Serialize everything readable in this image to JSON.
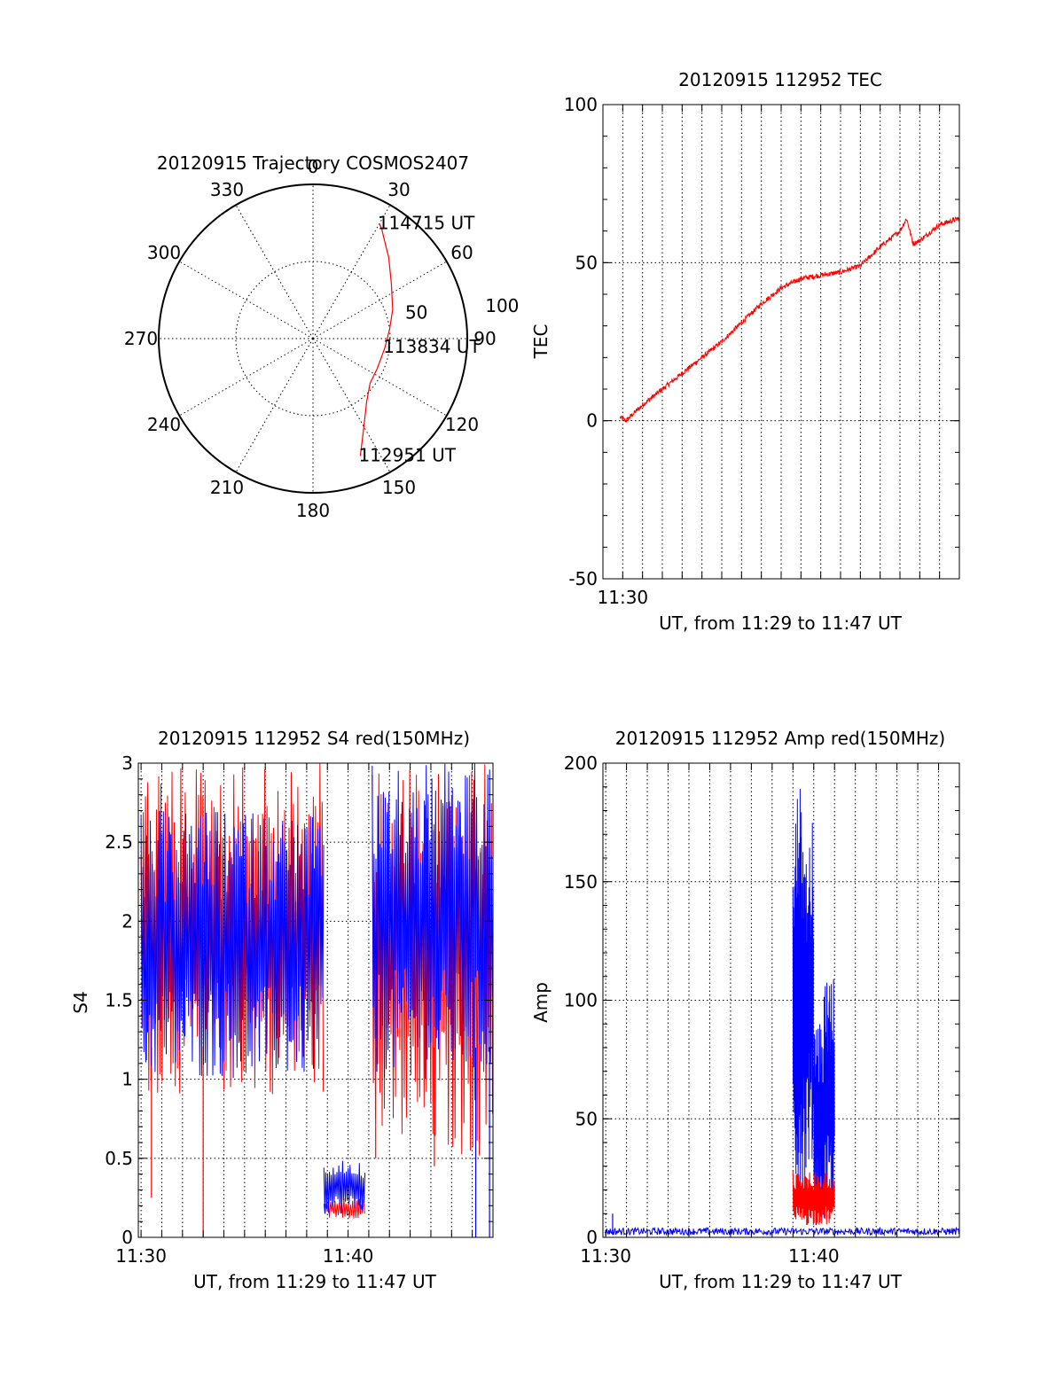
{
  "colors": {
    "red": "#ff0000",
    "blue": "#0000ff",
    "axis": "#000000",
    "background": "#ffffff"
  },
  "chart_data": [
    {
      "id": "polar",
      "type": "scatter",
      "title": "20120915 Trajectory COSMOS2407",
      "projection": "polar",
      "azimuth_labels": [
        "0",
        "30",
        "60",
        "90",
        "120",
        "150",
        "180",
        "210",
        "240",
        "270",
        "300",
        "330"
      ],
      "radius_labels": [
        "50",
        "100"
      ],
      "rlim": [
        0,
        100
      ],
      "grid": true,
      "series": [
        {
          "color": "#ff0000",
          "points_az_r": [
            [
              158,
              82
            ],
            [
              150,
              66
            ],
            [
              140,
              54
            ],
            [
              128,
              47
            ],
            [
              115,
              46
            ],
            [
              97,
              47
            ],
            [
              83,
              50
            ],
            [
              70,
              55
            ],
            [
              55,
              62
            ],
            [
              43,
              72
            ],
            [
              35,
              80
            ],
            [
              32,
              84
            ],
            [
              30,
              86
            ]
          ]
        }
      ],
      "annotations": [
        {
          "text": "114715 UT",
          "az": 30,
          "r": 86
        },
        {
          "text": "113834 UT",
          "az": 97,
          "r": 47
        },
        {
          "text": "112951 UT",
          "az": 158,
          "r": 82
        }
      ]
    },
    {
      "id": "tec",
      "type": "line",
      "title": "20120915 112952 TEC",
      "xlabel": "UT, from 11:29 to 11:47 UT",
      "ylabel": "TEC",
      "xlim": [
        "11:29",
        "11:47"
      ],
      "ylim": [
        -50,
        100
      ],
      "xticks": [
        "11:30"
      ],
      "yticks": [
        "-50",
        "0",
        "50",
        "100"
      ],
      "grid": true,
      "series": [
        {
          "color": "#ff0000",
          "x": [
            "11:29:52",
            "11:30:10",
            "11:31",
            "11:32",
            "11:33",
            "11:34",
            "11:35",
            "11:36",
            "11:37",
            "11:38",
            "11:39",
            "11:40",
            "11:41",
            "11:42",
            "11:43",
            "11:44",
            "11:44:20",
            "11:44:40",
            "11:45",
            "11:46",
            "11:47"
          ],
          "y": [
            1,
            0,
            5,
            10,
            15,
            20,
            25,
            31,
            37,
            42,
            45,
            46,
            47,
            49,
            55,
            60,
            64,
            56,
            57,
            62,
            64
          ]
        }
      ]
    },
    {
      "id": "s4",
      "type": "line",
      "title": "20120915 112952 S4 red(150MHz)",
      "xlabel": "UT, from 11:29 to 11:47 UT",
      "ylabel": "S4",
      "xlim": [
        "11:29:52",
        "11:47:00"
      ],
      "ylim": [
        0,
        3
      ],
      "xticks": [
        "11:30",
        "11:40"
      ],
      "yticks": [
        "0",
        "0.5",
        "1",
        "1.5",
        "2",
        "2.5",
        "3"
      ],
      "grid": true,
      "series": [
        {
          "color": "#ff0000",
          "segments": [
            {
              "from": "11:30:00",
              "to": "11:38:50",
              "low": 0.9,
              "high": 3.0
            },
            {
              "from": "11:38:50",
              "to": "11:40:50",
              "low": 0.12,
              "high": 0.25
            },
            {
              "from": "11:41:10",
              "to": "11:47:00",
              "low": 0.5,
              "high": 3.0
            }
          ],
          "dips": [
            [
              "11:30:30",
              0.25
            ],
            [
              "11:33:00",
              0.0
            ],
            [
              "11:41:20",
              0.5
            ],
            [
              "11:44:10",
              0.45
            ]
          ]
        },
        {
          "color": "#0000ff",
          "segments": [
            {
              "from": "11:30:00",
              "to": "11:38:50",
              "low": 1.0,
              "high": 2.7
            },
            {
              "from": "11:38:50",
              "to": "11:40:50",
              "low": 0.15,
              "high": 0.5
            },
            {
              "from": "11:41:10",
              "to": "11:47:00",
              "low": 1.0,
              "high": 3.0
            }
          ],
          "dips": [
            [
              "11:46:10",
              0.0
            ],
            [
              "11:46:50",
              0.0
            ]
          ]
        }
      ]
    },
    {
      "id": "amp",
      "type": "line",
      "title": "20120915 112952 Amp red(150MHz)",
      "xlabel": "UT, from 11:29 to 11:47 UT",
      "ylabel": "Amp",
      "xlim": [
        "11:29:52",
        "11:47:00"
      ],
      "ylim": [
        0,
        200
      ],
      "xticks": [
        "11:30",
        "11:40"
      ],
      "yticks": [
        "0",
        "50",
        "100",
        "150",
        "200"
      ],
      "grid": true,
      "series": [
        {
          "color": "#ff0000",
          "segments": [
            {
              "from": "11:39:00",
              "to": "11:41:00",
              "low": 5,
              "high": 28
            }
          ]
        },
        {
          "color": "#0000ff",
          "baseline": [
            1,
            4
          ],
          "segments": [
            {
              "from": "11:39:00",
              "to": "11:39:40",
              "low": 20,
              "high": 190
            },
            {
              "from": "11:39:40",
              "to": "11:40:00",
              "low": 30,
              "high": 175
            },
            {
              "from": "11:40:00",
              "to": "11:40:30",
              "low": 5,
              "high": 90
            },
            {
              "from": "11:40:30",
              "to": "11:41:00",
              "low": 10,
              "high": 110
            }
          ],
          "spikes": [
            [
              "11:30:20",
              10
            ]
          ]
        }
      ]
    }
  ]
}
